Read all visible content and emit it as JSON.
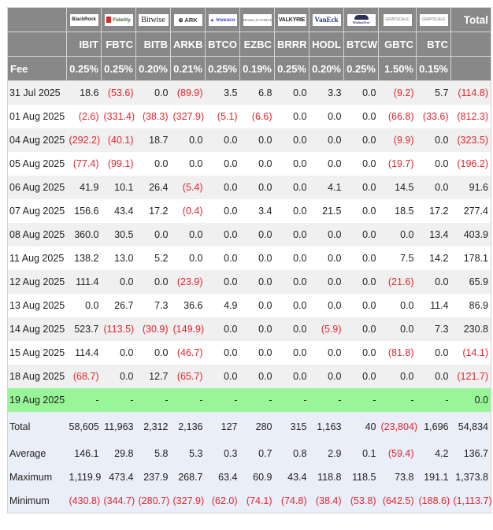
{
  "table": {
    "header": {
      "total_label": "Total",
      "fee_label": "Fee",
      "funds": [
        {
          "issuer": "BlackRock",
          "ticker": "IBIT",
          "fee": "0.25%"
        },
        {
          "issuer": "Fidelity",
          "ticker": "FBTC",
          "fee": "0.25%"
        },
        {
          "issuer": "Bitwise",
          "ticker": "BITB",
          "fee": "0.20%"
        },
        {
          "issuer": "ARK Invest",
          "ticker": "ARKB",
          "fee": "0.21%"
        },
        {
          "issuer": "Invesco",
          "ticker": "BTCO",
          "fee": "0.25%"
        },
        {
          "issuer": "Franklin Templeton",
          "ticker": "EZBC",
          "fee": "0.19%"
        },
        {
          "issuer": "Valkyrie",
          "ticker": "BRRR",
          "fee": "0.25%"
        },
        {
          "issuer": "VanEck",
          "ticker": "HODL",
          "fee": "0.20%"
        },
        {
          "issuer": "WisdomTree",
          "ticker": "BTCW",
          "fee": "0.25%"
        },
        {
          "issuer": "Grayscale",
          "ticker": "GBTC",
          "fee": "1.50%"
        },
        {
          "issuer": "Grayscale",
          "ticker": "BTC",
          "fee": "0.15%"
        }
      ]
    },
    "rows": [
      {
        "date": "31 Jul 2025",
        "values": [
          "18.6",
          "(53.6)",
          "0.0",
          "(89.9)",
          "3.5",
          "6.8",
          "0.0",
          "3.3",
          "0.0",
          "(9.2)",
          "5.7",
          "(114.8)"
        ]
      },
      {
        "date": "01 Aug 2025",
        "values": [
          "(2.6)",
          "(331.4)",
          "(38.3)",
          "(327.9)",
          "(5.1)",
          "(6.6)",
          "0.0",
          "0.0",
          "0.0",
          "(66.8)",
          "(33.6)",
          "(812.3)"
        ]
      },
      {
        "date": "04 Aug 2025",
        "values": [
          "(292.2)",
          "(40.1)",
          "18.7",
          "0.0",
          "0.0",
          "0.0",
          "0.0",
          "0.0",
          "0.0",
          "(9.9)",
          "0.0",
          "(323.5)"
        ]
      },
      {
        "date": "05 Aug 2025",
        "values": [
          "(77.4)",
          "(99.1)",
          "0.0",
          "0.0",
          "0.0",
          "0.0",
          "0.0",
          "0.0",
          "0.0",
          "(19.7)",
          "0.0",
          "(196.2)"
        ]
      },
      {
        "date": "06 Aug 2025",
        "values": [
          "41.9",
          "10.1",
          "26.4",
          "(5.4)",
          "0.0",
          "0.0",
          "0.0",
          "4.1",
          "0.0",
          "14.5",
          "0.0",
          "91.6"
        ]
      },
      {
        "date": "07 Aug 2025",
        "values": [
          "156.6",
          "43.4",
          "17.2",
          "(0.4)",
          "0.0",
          "3.4",
          "0.0",
          "21.5",
          "0.0",
          "18.5",
          "17.2",
          "277.4"
        ]
      },
      {
        "date": "08 Aug 2025",
        "values": [
          "360.0",
          "30.5",
          "0.0",
          "0.0",
          "0.0",
          "0.0",
          "0.0",
          "0.0",
          "0.0",
          "0.0",
          "13.4",
          "403.9"
        ]
      },
      {
        "date": "11 Aug 2025",
        "values": [
          "138.2",
          "13.0",
          "5.2",
          "0.0",
          "0.0",
          "0.0",
          "0.0",
          "0.0",
          "0.0",
          "7.5",
          "14.2",
          "178.1"
        ]
      },
      {
        "date": "12 Aug 2025",
        "values": [
          "111.4",
          "0.0",
          "0.0",
          "(23.9)",
          "0.0",
          "0.0",
          "0.0",
          "0.0",
          "0.0",
          "(21.6)",
          "0.0",
          "65.9"
        ]
      },
      {
        "date": "13 Aug 2025",
        "values": [
          "0.0",
          "26.7",
          "7.3",
          "36.6",
          "4.9",
          "0.0",
          "0.0",
          "0.0",
          "0.0",
          "0.0",
          "11.4",
          "86.9"
        ]
      },
      {
        "date": "14 Aug 2025",
        "values": [
          "523.7",
          "(113.5)",
          "(30.9)",
          "(149.9)",
          "0.0",
          "0.0",
          "0.0",
          "(5.9)",
          "0.0",
          "0.0",
          "7.3",
          "230.8"
        ]
      },
      {
        "date": "15 Aug 2025",
        "values": [
          "114.4",
          "0.0",
          "0.0",
          "(46.7)",
          "0.0",
          "0.0",
          "0.0",
          "0.0",
          "0.0",
          "(81.8)",
          "0.0",
          "(14.1)"
        ]
      },
      {
        "date": "18 Aug 2025",
        "values": [
          "(68.7)",
          "0.0",
          "12.7",
          "(65.7)",
          "0.0",
          "0.0",
          "0.0",
          "0.0",
          "0.0",
          "0.0",
          "0.0",
          "(121.7)"
        ]
      },
      {
        "date": "19 Aug 2025",
        "highlight": true,
        "values": [
          "-",
          "-",
          "-",
          "-",
          "-",
          "-",
          "-",
          "-",
          "-",
          "-",
          "-",
          "0.0"
        ]
      }
    ],
    "stats": [
      {
        "label": "Total",
        "values": [
          "58,605",
          "11,963",
          "2,312",
          "2,136",
          "127",
          "280",
          "315",
          "1,163",
          "40",
          "(23,804)",
          "1,696",
          "54,834"
        ]
      },
      {
        "label": "Average",
        "values": [
          "146.1",
          "29.8",
          "5.8",
          "5.3",
          "0.3",
          "0.7",
          "0.8",
          "2.9",
          "0.1",
          "(59.4)",
          "4.2",
          "136.7"
        ]
      },
      {
        "label": "Maximum",
        "values": [
          "1,119.9",
          "473.4",
          "237.9",
          "268.7",
          "63.4",
          "60.9",
          "43.4",
          "118.8",
          "118.5",
          "73.8",
          "191.1",
          "1,373.8"
        ]
      },
      {
        "label": "Minimum",
        "values": [
          "(430.8)",
          "(344.7)",
          "(280.7)",
          "(327.9)",
          "(62.0)",
          "(74.1)",
          "(74.8)",
          "(38.4)",
          "(53.8)",
          "(642.5)",
          "(188.6)",
          "(1,113.7)"
        ]
      }
    ],
    "colors": {
      "header_bg": "#888888",
      "negative": "#e0262e",
      "today_highlight": "#98f598",
      "stats_bg": "#eaeef8",
      "row_alt": "#f0f0f0"
    }
  }
}
